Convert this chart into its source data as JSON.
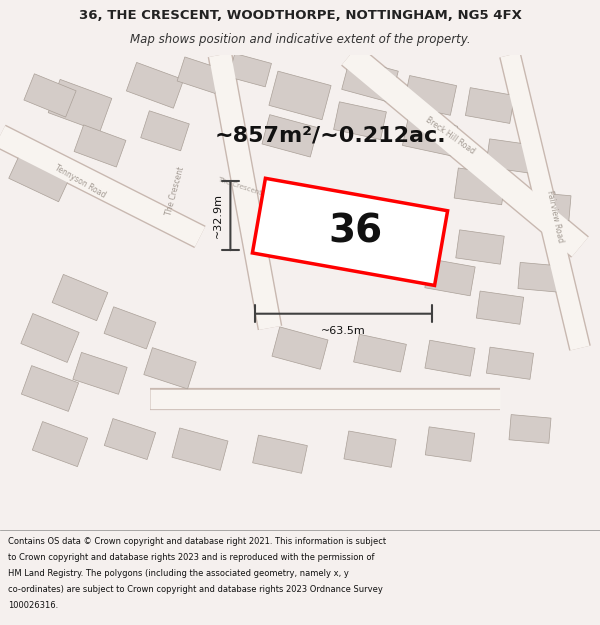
{
  "title_line1": "36, THE CRESCENT, WOODTHORPE, NOTTINGHAM, NG5 4FX",
  "title_line2": "Map shows position and indicative extent of the property.",
  "area_text": "~857m²/~0.212ac.",
  "label_36": "36",
  "dim_width": "~63.5m",
  "dim_height": "~32.9m",
  "footer": "Contains OS data © Crown copyright and database right 2021. This information is subject to Crown copyright and database rights 2023 and is reproduced with the permission of HM Land Registry. The polygons (including the associated geometry, namely x, y co-ordinates) are subject to Crown copyright and database rights 2023 Ordnance Survey 100026316.",
  "bg_color": "#f5f0ee",
  "map_bg": "#f0ece8",
  "road_color": "#e8c8c8",
  "road_fill": "#ffffff",
  "building_fill": "#d8d0cc",
  "building_edge": "#b8b0ac",
  "plot_color": "#ff0000",
  "plot_fill": "#ffffff",
  "dim_color": "#404040",
  "title_box_color": "#ffffff",
  "footer_box_color": "#ffffff"
}
